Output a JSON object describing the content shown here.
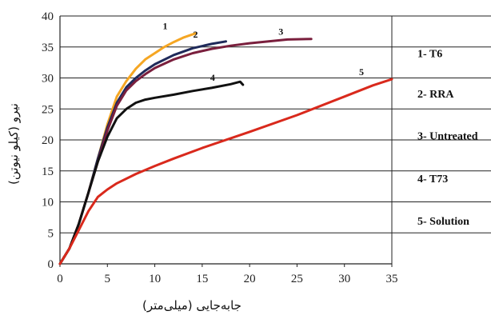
{
  "chart_data": {
    "type": "line",
    "title": "",
    "xlabel": "جابه‌جایی (میلی‌متر)",
    "ylabel": "نیرو (کیلو نیوتن)",
    "xlim": [
      0,
      35
    ],
    "ylim": [
      0,
      40
    ],
    "x_ticks": [
      "0",
      "5",
      "10",
      "15",
      "20",
      "25",
      "30",
      "35"
    ],
    "y_ticks": [
      "0",
      "5",
      "10",
      "15",
      "20",
      "25",
      "30",
      "35",
      "40"
    ],
    "grid": "horizontal",
    "legend": {
      "placement": "right",
      "entries": [
        "1- T6",
        "2- RRA",
        "3- Untreated",
        "4- T73",
        "5- Solution"
      ]
    },
    "series": [
      {
        "name": "1- T6",
        "label": "1",
        "color": "#f5a623",
        "points": [
          [
            0,
            0
          ],
          [
            1,
            2.5
          ],
          [
            2,
            6.5
          ],
          [
            3,
            11.5
          ],
          [
            4,
            17
          ],
          [
            5,
            22.5
          ],
          [
            6,
            27
          ],
          [
            7,
            29.5
          ],
          [
            8,
            31.5
          ],
          [
            9,
            33
          ],
          [
            10,
            34
          ],
          [
            11,
            35
          ],
          [
            12,
            35.8
          ],
          [
            13,
            36.5
          ],
          [
            14.3,
            37.2
          ]
        ]
      },
      {
        "name": "2- RRA",
        "label": "2",
        "color": "#1f2a5a",
        "points": [
          [
            0,
            0
          ],
          [
            1,
            2.5
          ],
          [
            2,
            6.5
          ],
          [
            3,
            11.5
          ],
          [
            4,
            17
          ],
          [
            5,
            22
          ],
          [
            6,
            26
          ],
          [
            7,
            28.5
          ],
          [
            8,
            30
          ],
          [
            9,
            31.2
          ],
          [
            10,
            32.2
          ],
          [
            12,
            33.7
          ],
          [
            14,
            34.8
          ],
          [
            16,
            35.5
          ],
          [
            17.5,
            35.9
          ]
        ]
      },
      {
        "name": "3- Untreated",
        "label": "3",
        "color": "#7a1f3d",
        "points": [
          [
            0,
            0
          ],
          [
            1,
            2.5
          ],
          [
            2,
            6.5
          ],
          [
            3,
            11.5
          ],
          [
            4,
            16.5
          ],
          [
            5,
            21.5
          ],
          [
            6,
            25.5
          ],
          [
            7,
            28
          ],
          [
            8,
            29.5
          ],
          [
            9,
            30.6
          ],
          [
            10,
            31.6
          ],
          [
            12,
            33
          ],
          [
            14,
            34
          ],
          [
            16,
            34.7
          ],
          [
            18,
            35.2
          ],
          [
            20,
            35.6
          ],
          [
            22,
            35.9
          ],
          [
            24,
            36.2
          ],
          [
            26.5,
            36.3
          ]
        ]
      },
      {
        "name": "4- T73",
        "label": "4",
        "color": "#111111",
        "points": [
          [
            0,
            0
          ],
          [
            1,
            2.5
          ],
          [
            2,
            6.5
          ],
          [
            3,
            11.5
          ],
          [
            4,
            16.5
          ],
          [
            5,
            20.5
          ],
          [
            6,
            23.5
          ],
          [
            7,
            25
          ],
          [
            8,
            26
          ],
          [
            9,
            26.5
          ],
          [
            10,
            26.8
          ],
          [
            12,
            27.3
          ],
          [
            14,
            27.9
          ],
          [
            16,
            28.4
          ],
          [
            18,
            29
          ],
          [
            19,
            29.4
          ],
          [
            19.3,
            28.9
          ]
        ]
      },
      {
        "name": "5- Solution",
        "label": "5",
        "color": "#d9291c",
        "points": [
          [
            0,
            0
          ],
          [
            1,
            2.5
          ],
          [
            2,
            5.5
          ],
          [
            3,
            8.5
          ],
          [
            4,
            10.8
          ],
          [
            5,
            12
          ],
          [
            6,
            13
          ],
          [
            8,
            14.5
          ],
          [
            10,
            15.8
          ],
          [
            12,
            17
          ],
          [
            15,
            18.7
          ],
          [
            20,
            21.3
          ],
          [
            25,
            24
          ],
          [
            30,
            27
          ],
          [
            33,
            28.8
          ],
          [
            35,
            29.8
          ]
        ]
      }
    ]
  }
}
